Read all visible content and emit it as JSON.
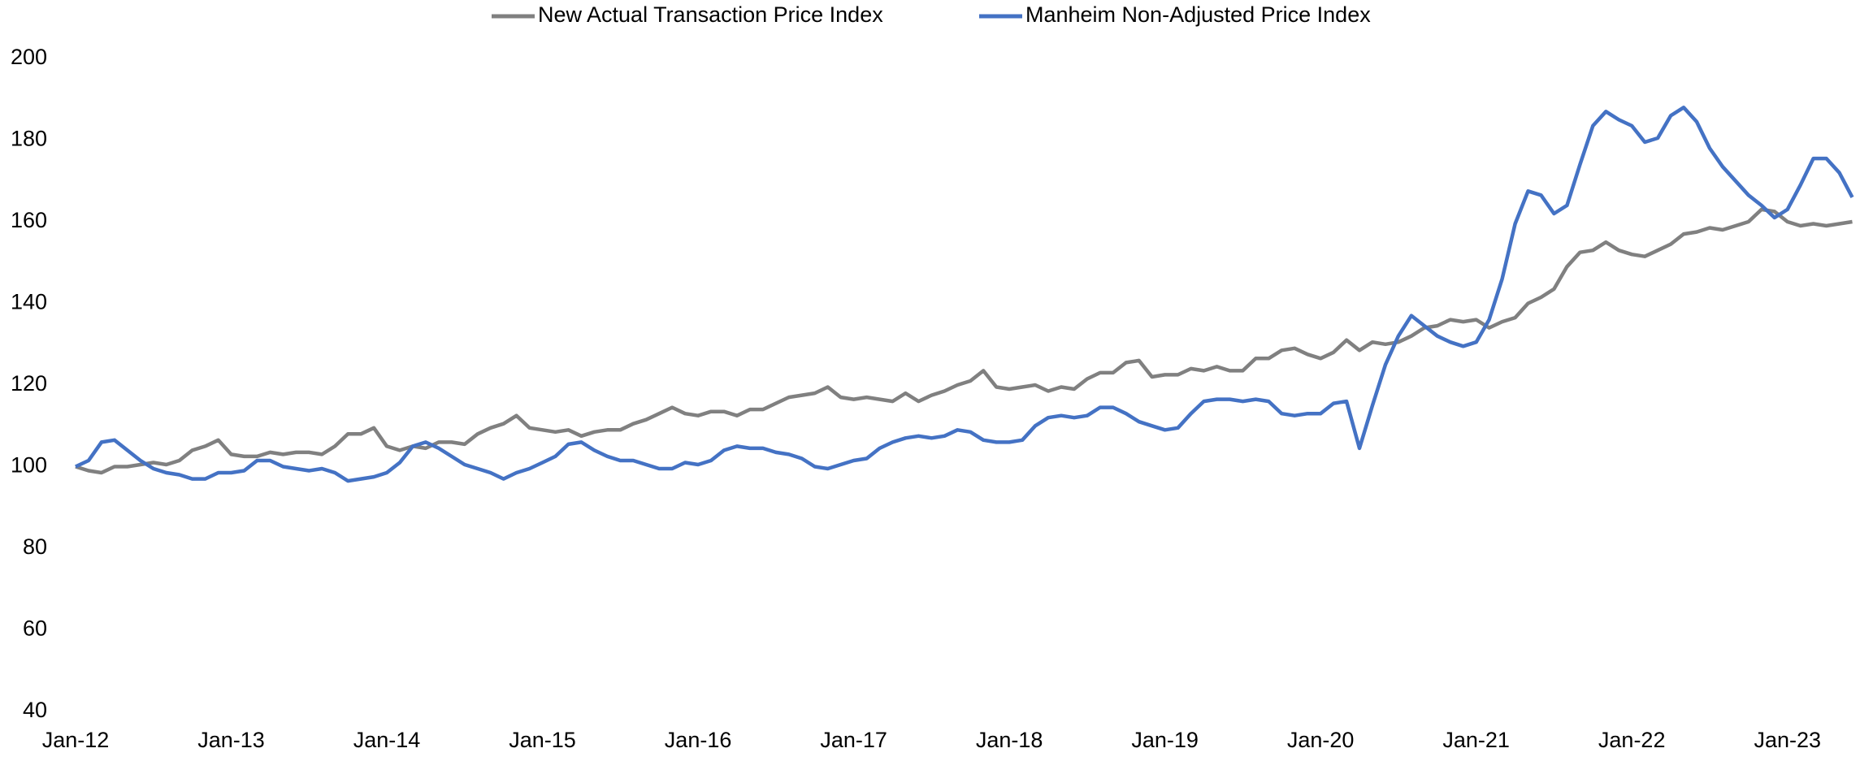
{
  "chart_data": {
    "type": "line",
    "categories": [
      "Jan-12",
      null,
      null,
      null,
      null,
      null,
      null,
      null,
      null,
      null,
      null,
      null,
      "Jan-13",
      null,
      null,
      null,
      null,
      null,
      null,
      null,
      null,
      null,
      null,
      null,
      "Jan-14",
      null,
      null,
      null,
      null,
      null,
      null,
      null,
      null,
      null,
      null,
      null,
      "Jan-15",
      null,
      null,
      null,
      null,
      null,
      null,
      null,
      null,
      null,
      null,
      null,
      "Jan-16",
      null,
      null,
      null,
      null,
      null,
      null,
      null,
      null,
      null,
      null,
      null,
      "Jan-17",
      null,
      null,
      null,
      null,
      null,
      null,
      null,
      null,
      null,
      null,
      null,
      "Jan-18",
      null,
      null,
      null,
      null,
      null,
      null,
      null,
      null,
      null,
      null,
      null,
      "Jan-19",
      null,
      null,
      null,
      null,
      null,
      null,
      null,
      null,
      null,
      null,
      null,
      "Jan-20",
      null,
      null,
      null,
      null,
      null,
      null,
      null,
      null,
      null,
      null,
      null,
      "Jan-21",
      null,
      null,
      null,
      null,
      null,
      null,
      null,
      null,
      null,
      null,
      null,
      "Jan-22",
      null,
      null,
      null,
      null,
      null,
      null,
      null,
      null,
      null,
      null,
      null,
      "Jan-23",
      null,
      null,
      null,
      null,
      null
    ],
    "series": [
      {
        "name": "New Actual Transaction Price Index",
        "color": "#808080",
        "values": [
          100,
          99,
          98.5,
          100,
          100,
          100.5,
          101,
          100.5,
          101.5,
          104,
          105,
          106.5,
          103,
          102.5,
          102.5,
          103.5,
          103,
          103.5,
          103.5,
          103,
          105,
          108,
          108,
          109.5,
          105,
          104,
          105,
          104.5,
          106,
          106,
          105.5,
          108,
          109.5,
          110.5,
          112.5,
          109.5,
          109,
          108.5,
          109,
          107.5,
          108.5,
          109,
          109,
          110.5,
          111.5,
          113,
          114.5,
          113,
          112.5,
          113.5,
          113.5,
          112.5,
          114,
          114,
          115.5,
          117,
          117.5,
          118,
          119.5,
          117,
          116.5,
          117,
          116.5,
          116,
          118,
          116,
          117.5,
          118.5,
          120,
          121,
          123.5,
          119.5,
          119,
          119.5,
          120,
          118.5,
          119.5,
          119,
          121.5,
          123,
          123,
          125.5,
          126,
          122,
          122.5,
          122.5,
          124,
          123.5,
          124.5,
          123.5,
          123.5,
          126.5,
          126.5,
          128.5,
          129,
          127.5,
          126.5,
          128,
          131,
          128.5,
          130.5,
          130,
          130.5,
          132,
          134,
          134.5,
          136,
          135.5,
          136,
          134,
          135.5,
          136.5,
          140,
          141.5,
          143.5,
          149,
          152.5,
          153,
          155,
          153,
          152,
          151.5,
          153,
          154.5,
          157,
          157.5,
          158.5,
          158,
          159,
          160,
          163,
          162.5,
          160,
          159,
          159.5,
          159,
          159.5,
          160
        ]
      },
      {
        "name": "Manheim Non-Adjusted Price Index",
        "color": "#4472c4",
        "values": [
          100,
          101.5,
          106,
          106.5,
          104,
          101.5,
          99.5,
          98.5,
          98,
          97,
          97,
          98.5,
          98.5,
          99,
          101.5,
          101.5,
          100,
          99.5,
          99,
          99.5,
          98.5,
          96.5,
          97,
          97.5,
          98.5,
          101,
          105,
          106,
          104.5,
          102.5,
          100.5,
          99.5,
          98.5,
          97,
          98.5,
          99.5,
          101,
          102.5,
          105.5,
          106,
          104,
          102.5,
          101.5,
          101.5,
          100.5,
          99.5,
          99.5,
          101,
          100.5,
          101.5,
          104,
          105,
          104.5,
          104.5,
          103.5,
          103,
          102,
          100,
          99.5,
          100.5,
          101.5,
          102,
          104.5,
          106,
          107,
          107.5,
          107,
          107.5,
          109,
          108.5,
          106.5,
          106,
          106,
          106.5,
          110,
          112,
          112.5,
          112,
          112.5,
          114.5,
          114.5,
          113,
          111,
          110,
          109,
          109.5,
          113,
          116,
          116.5,
          116.5,
          116,
          116.5,
          116,
          113,
          112.5,
          113,
          113,
          115.5,
          116,
          104.5,
          115,
          125,
          132,
          137,
          134.5,
          132,
          130.5,
          129.5,
          130.5,
          136,
          146,
          159.5,
          167.5,
          166.5,
          162,
          164,
          174,
          183.5,
          187,
          185,
          183.5,
          179.5,
          180.5,
          186,
          188,
          184.5,
          178,
          173.5,
          170,
          166.5,
          164,
          161,
          163,
          169,
          175.5,
          175.5,
          172,
          166
        ]
      }
    ],
    "ylim": [
      40,
      200
    ],
    "yticks": [
      40,
      60,
      80,
      100,
      120,
      140,
      160,
      180,
      200
    ],
    "grid": false,
    "legend": "top"
  }
}
